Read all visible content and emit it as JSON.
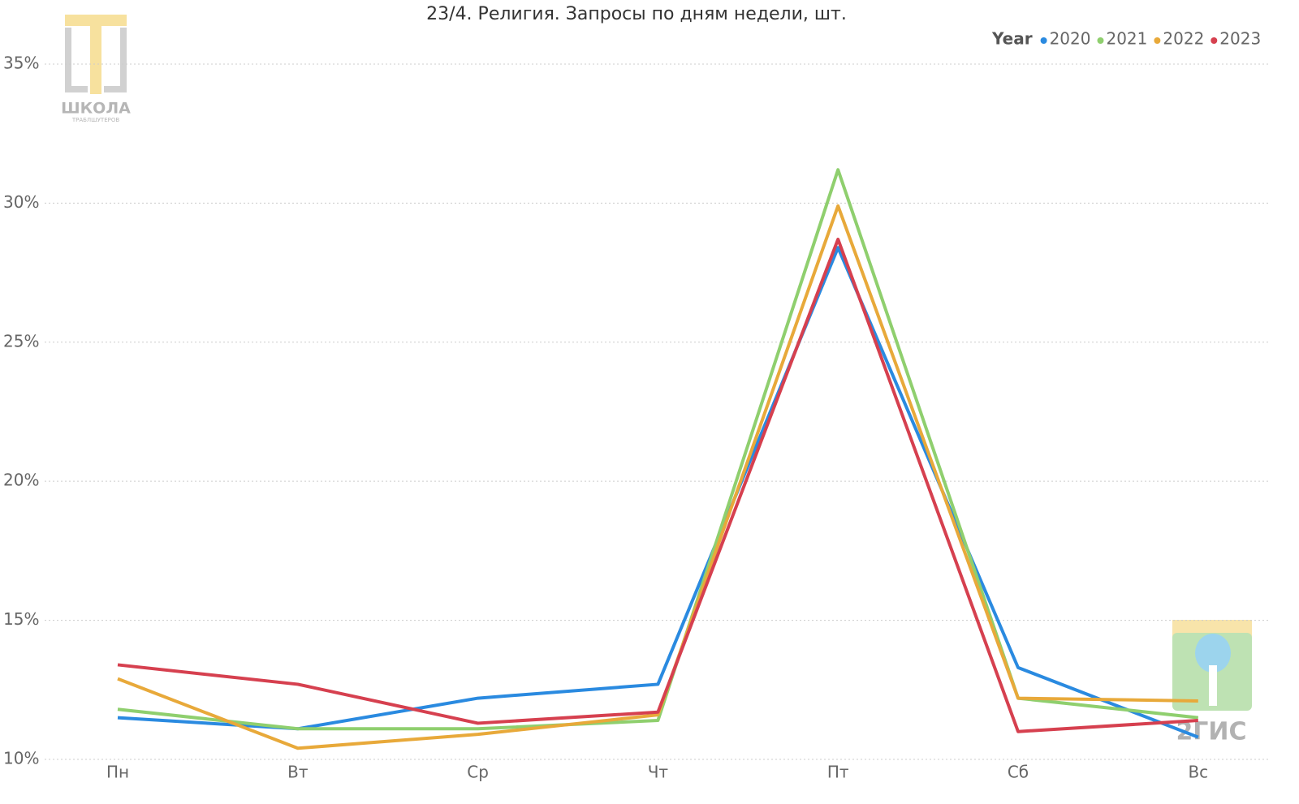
{
  "chart_data": {
    "type": "line",
    "title": "23/4. Религия. Запросы по дням недели, шт.",
    "categories": [
      "Пн",
      "Вт",
      "Ср",
      "Чт",
      "Пт",
      "Сб",
      "Вс"
    ],
    "legend_title": "Year",
    "series": [
      {
        "name": "2020",
        "color": "#2a8ae0",
        "values": [
          11.5,
          11.1,
          12.2,
          12.7,
          28.4,
          13.3,
          10.8
        ]
      },
      {
        "name": "2021",
        "color": "#8fcf6e",
        "values": [
          11.8,
          11.1,
          11.1,
          11.4,
          31.2,
          12.2,
          11.5
        ]
      },
      {
        "name": "2022",
        "color": "#e8a93a",
        "values": [
          12.9,
          10.4,
          10.9,
          11.6,
          29.9,
          12.2,
          12.1
        ]
      },
      {
        "name": "2023",
        "color": "#d6404f",
        "values": [
          13.4,
          12.7,
          11.3,
          11.7,
          28.7,
          11.0,
          11.4
        ]
      }
    ],
    "ylim": [
      10,
      37
    ],
    "yticks": [
      {
        "value": 10,
        "label": "10%"
      },
      {
        "value": 15,
        "label": "15%"
      },
      {
        "value": 20,
        "label": "20%"
      },
      {
        "value": 25,
        "label": "25%"
      },
      {
        "value": 30,
        "label": "30%"
      },
      {
        "value": 35,
        "label": "35%"
      }
    ],
    "grid": true,
    "legend_position": "top-right",
    "logos": [
      "ШКОЛА",
      "ТРАБЛШУТЕРОВ",
      "2ГИС"
    ]
  }
}
